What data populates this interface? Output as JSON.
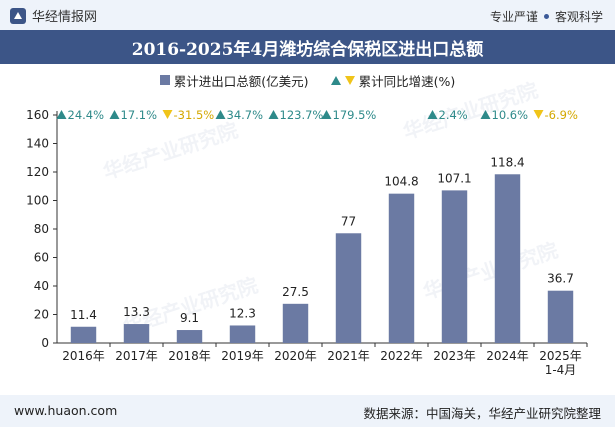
{
  "header": {
    "brand": "华经情报网",
    "slogan_left": "专业严谨",
    "slogan_right": "客观科学"
  },
  "title": "2016-2025年4月潍坊综合保税区进出口总额",
  "legend": {
    "bar_label": "累计进出口总额(亿美元)",
    "growth_label": "累计同比增速(%)"
  },
  "watermark": "华经产业研究院",
  "footer": {
    "url": "www.huaon.com",
    "source": "数据来源：中国海关，华经产业研究院整理"
  },
  "colors": {
    "bar": "#6b7aa3",
    "up": "#2e8a8a",
    "down": "#f0c419",
    "header": "#3c5587"
  },
  "chart_data": {
    "type": "bar",
    "title": "2016-2025年4月潍坊综合保税区进出口总额",
    "categories": [
      "2016年",
      "2017年",
      "2018年",
      "2019年",
      "2020年",
      "2021年",
      "2022年",
      "2023年",
      "2024年",
      "2025年\n1-4月"
    ],
    "series": [
      {
        "name": "累计进出口总额(亿美元)",
        "values": [
          11.4,
          13.3,
          9.1,
          12.3,
          27.5,
          77,
          104.8,
          107.1,
          118.4,
          36.7
        ]
      }
    ],
    "growth": {
      "name": "累计同比增速(%)",
      "values": [
        24.4,
        17.1,
        -31.5,
        34.7,
        123.7,
        179.5,
        2.4,
        10.6,
        -6.9
      ],
      "categories": [
        "2016年",
        "2017年",
        "2018年",
        "2019年",
        "2020年",
        "2021年",
        "2023年",
        "2024年",
        "2025年\n1-4月"
      ],
      "labels": [
        "24.4%",
        "17.1%",
        "-31.5%",
        "34.7%",
        "123.7%",
        "179.5%",
        "2.4%",
        "10.6%",
        "-6.9%"
      ]
    },
    "ylim": [
      0,
      160
    ],
    "yticks": [
      0,
      20,
      40,
      60,
      80,
      100,
      120,
      140,
      160
    ],
    "xlabel": "",
    "ylabel": ""
  }
}
